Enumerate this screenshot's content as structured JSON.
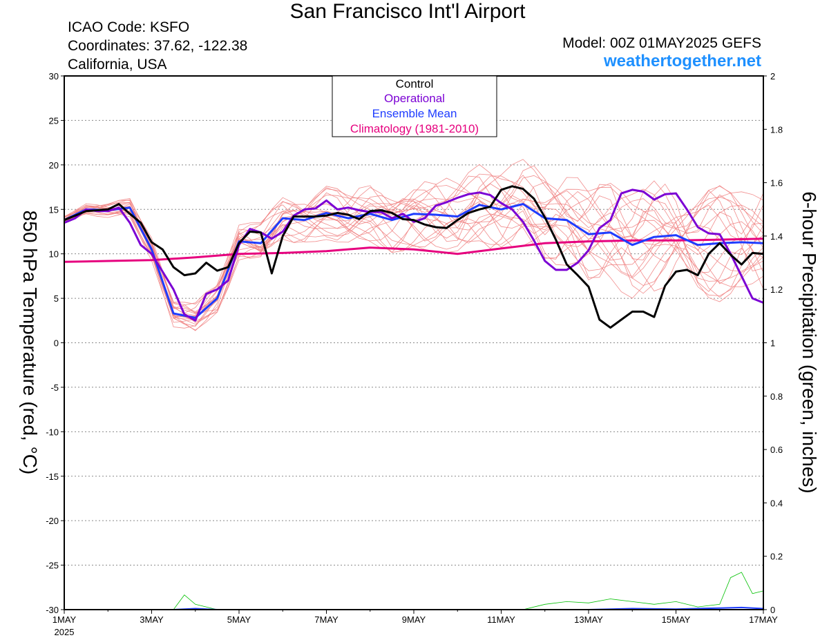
{
  "header": {
    "title": "San Francisco Int'l Airport",
    "icao": "ICAO Code: KSFO",
    "coordinates": "Coordinates: 37.62, -122.38",
    "region": "California, USA",
    "model": "Model: 00Z 01MAY2025 GEFS",
    "site": "weathertogether.net"
  },
  "colors": {
    "control": "#000000",
    "operational": "#7b00d4",
    "ensemble_mean": "#1e3cff",
    "climatology": "#e6007e",
    "members": "#f08080",
    "precip_members": "#00c000",
    "website": "#1e90ff"
  },
  "chart_data": {
    "type": "line",
    "xlabel_ticks": [
      "1MAY",
      "3MAY",
      "5MAY",
      "7MAY",
      "9MAY",
      "11MAY",
      "13MAY",
      "15MAY",
      "17MAY"
    ],
    "x_year_label": "2025",
    "xlim_days": [
      0,
      16
    ],
    "ylabel_left": "850 hPa Temperature (red, °C)",
    "ylabel_right": "6-hour Precipitation (green, inches)",
    "ylim_left": [
      -30,
      30
    ],
    "yticks_left": [
      30,
      25,
      20,
      15,
      10,
      5,
      0,
      -5,
      -10,
      -15,
      -20,
      -25,
      -30
    ],
    "ylim_right": [
      0,
      2
    ],
    "yticks_right": [
      "2",
      "1.8",
      "1.6",
      "1.4",
      "1.2",
      "1",
      "0.8",
      "0.6",
      "0.4",
      "0.2",
      "0"
    ],
    "grid": "horizontal dotted",
    "legend": {
      "position": "top-center",
      "entries": [
        "Control",
        "Operational",
        "Ensemble Mean",
        "Climatology (1981-2010)"
      ]
    },
    "series": [
      {
        "name": "Control",
        "key": "control",
        "x": [
          0,
          0.25,
          0.5,
          0.75,
          1,
          1.25,
          1.5,
          1.75,
          2,
          2.25,
          2.5,
          2.75,
          3,
          3.25,
          3.5,
          3.75,
          4,
          4.25,
          4.5,
          4.75,
          5,
          5.25,
          5.5,
          5.75,
          6,
          6.25,
          6.5,
          6.75,
          7,
          7.25,
          7.5,
          7.75,
          8,
          8.25,
          8.5,
          8.75,
          9,
          9.25,
          9.5,
          9.75,
          10,
          10.25,
          10.5,
          10.75,
          11,
          11.25,
          11.5,
          11.75,
          12,
          12.25,
          12.5,
          12.75,
          13,
          13.25,
          13.5,
          13.75,
          14,
          14.25,
          14.5,
          14.75,
          15,
          15.25,
          15.5,
          15.75,
          16
        ],
        "values": [
          13.8,
          14.3,
          14.8,
          14.9,
          15,
          15.6,
          14.5,
          13.5,
          11.3,
          10.5,
          8.5,
          7.6,
          7.8,
          9,
          8.1,
          8.5,
          11.2,
          12.5,
          12.4,
          7.8,
          12,
          14.2,
          14.2,
          14.2,
          14.3,
          14.6,
          14.4,
          13.9,
          14.8,
          14.9,
          14.6,
          13.9,
          13.8,
          13.3,
          13,
          12.9,
          13.8,
          14.6,
          15,
          15.3,
          17.2,
          17.6,
          17.3,
          16.2,
          14.1,
          11.6,
          8.8,
          7.6,
          6.3,
          2.6,
          1.7,
          2.6,
          3.5,
          3.5,
          2.9,
          6.4,
          8,
          8.2,
          7.6,
          10,
          11.2,
          9.9,
          8.8,
          10.1,
          10
        ]
      },
      {
        "name": "Operational",
        "key": "operational",
        "x": [
          0,
          0.25,
          0.5,
          0.75,
          1,
          1.25,
          1.5,
          1.75,
          2,
          2.25,
          2.5,
          2.75,
          3,
          3.25,
          3.5,
          3.75,
          4,
          4.25,
          4.5,
          4.75,
          5,
          5.25,
          5.5,
          5.75,
          6,
          6.25,
          6.5,
          6.75,
          7,
          7.25,
          7.5,
          7.75,
          8,
          8.25,
          8.5,
          8.75,
          9,
          9.25,
          9.5,
          9.75,
          10,
          10.25,
          10.5,
          10.75,
          11,
          11.25,
          11.5,
          11.75,
          12,
          12.25,
          12.5,
          12.75,
          13,
          13.25,
          13.5,
          13.75,
          14,
          14.25,
          14.5,
          14.75,
          15,
          15.25,
          15.5,
          15.75,
          16
        ],
        "values": [
          13.5,
          14,
          15,
          14.8,
          14.8,
          15.2,
          13.5,
          11,
          10,
          8,
          6,
          3.2,
          2.5,
          5.5,
          6,
          7,
          11,
          12.8,
          12.4,
          11.7,
          12.5,
          14.3,
          15,
          15.1,
          16,
          15,
          15.2,
          14.9,
          14.7,
          14.7,
          14,
          14.5,
          13.6,
          14,
          15.4,
          15.8,
          16.3,
          16.7,
          16.9,
          16.6,
          15.7,
          15,
          13.6,
          11.5,
          9.2,
          8.2,
          8.2,
          9,
          10.4,
          12.9,
          13.8,
          16.8,
          17.2,
          17,
          16.1,
          16.7,
          16.8,
          15,
          13,
          12.3,
          12.2,
          10,
          7.5,
          5,
          4.5
        ]
      },
      {
        "name": "Ensemble Mean",
        "key": "ensemble_mean",
        "x": [
          0,
          0.5,
          1,
          1.5,
          2,
          2.5,
          3,
          3.5,
          4,
          4.5,
          5,
          5.5,
          6,
          6.5,
          7,
          7.5,
          8,
          8.5,
          9,
          9.5,
          10,
          10.5,
          11,
          11.5,
          12,
          12.5,
          13,
          13.5,
          14,
          14.5,
          15,
          15.5,
          16
        ],
        "values": [
          13.8,
          15,
          14.9,
          15.2,
          10.5,
          3.3,
          2.8,
          5,
          11.4,
          11.2,
          14,
          13.8,
          14.6,
          14,
          14.5,
          13.8,
          14.5,
          14.4,
          14.2,
          15.5,
          15,
          15.6,
          14,
          13.8,
          12.2,
          12.4,
          11,
          11.9,
          12.1,
          11,
          11.2,
          11.3,
          11.2
        ]
      },
      {
        "name": "Climatology (1981-2010)",
        "key": "climatology",
        "x": [
          0,
          1,
          2,
          3,
          4,
          5,
          6,
          7,
          8,
          9,
          10,
          11,
          12,
          13,
          14,
          15,
          16
        ],
        "values": [
          9.1,
          9.2,
          9.3,
          9.6,
          10,
          10.1,
          10.3,
          10.7,
          10.5,
          10,
          10.6,
          11.2,
          11.4,
          11.5,
          11.5,
          11.6,
          11.7
        ]
      }
    ],
    "precip_series": {
      "units": "inches",
      "control": {
        "x": [
          0,
          16
        ],
        "values": [
          0,
          0
        ]
      },
      "ensemble_mean": {
        "x": [
          0,
          2.5,
          3,
          3.5,
          4,
          12,
          13,
          14,
          15,
          15.5,
          16
        ],
        "values": [
          0,
          0,
          0.004,
          0,
          0,
          0,
          0.004,
          0.002,
          0.006,
          0.008,
          0.004
        ]
      },
      "members_peak": {
        "x": [
          0,
          2.5,
          2.75,
          3,
          3.5,
          4,
          10.5,
          11,
          11.5,
          12,
          12.5,
          13,
          13.5,
          14,
          14.5,
          15,
          15.25,
          15.5,
          15.75,
          16
        ],
        "values": [
          0,
          0,
          0.055,
          0.02,
          0,
          0,
          0,
          0.02,
          0.03,
          0.025,
          0.04,
          0.03,
          0.02,
          0.03,
          0.01,
          0.02,
          0.12,
          0.14,
          0.06,
          0.07
        ]
      }
    }
  }
}
